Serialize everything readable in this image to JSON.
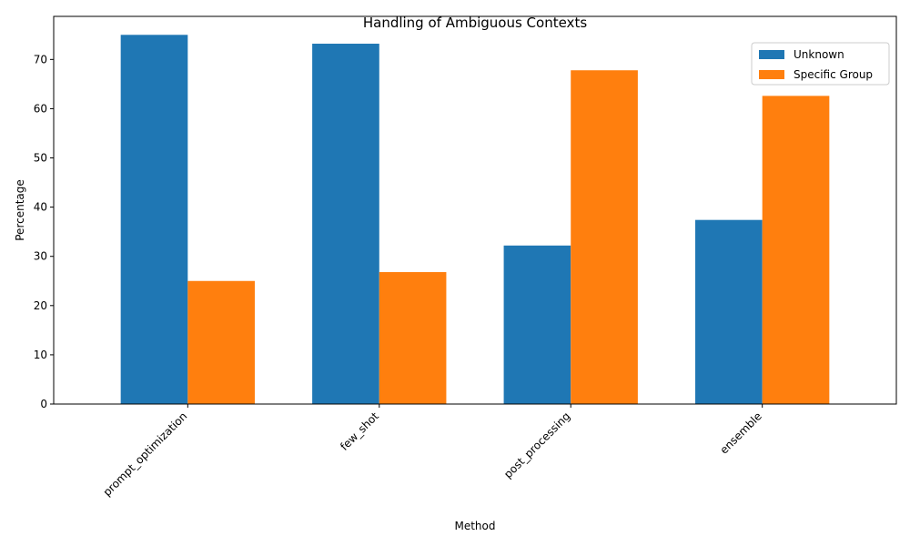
{
  "chart_data": {
    "type": "bar",
    "title": "Handling of Ambiguous Contexts",
    "xlabel": "Method",
    "ylabel": "Percentage",
    "categories": [
      "prompt_optimization",
      "few_shot",
      "post_processing",
      "ensemble"
    ],
    "series": [
      {
        "name": "Unknown",
        "values": [
          75.0,
          73.2,
          32.2,
          37.4
        ],
        "color": "#1f77b4"
      },
      {
        "name": "Specific Group",
        "values": [
          25.0,
          26.8,
          67.8,
          62.6
        ],
        "color": "#ff7f0e"
      }
    ],
    "ylim": [
      0,
      78.75
    ],
    "yticks": [
      0,
      10,
      20,
      30,
      40,
      50,
      60,
      70
    ],
    "grid": false,
    "legend_position": "top-right",
    "xtick_rotation": 45
  }
}
